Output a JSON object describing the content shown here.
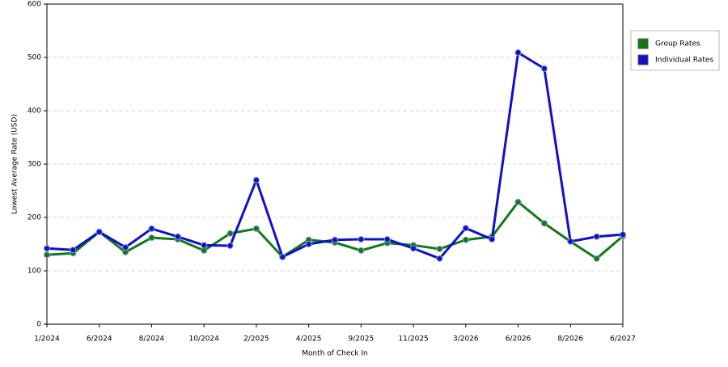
{
  "chart_data": {
    "type": "line",
    "x_label": "Month of Check In",
    "y_label": "Lowest Average Rate (USD)",
    "categories": [
      "1/2024",
      null,
      "6/2024",
      null,
      "8/2024",
      null,
      "10/2024",
      null,
      "2/2025",
      null,
      "4/2025",
      null,
      "9/2025",
      null,
      "11/2025",
      null,
      "3/2026",
      null,
      "6/2026",
      null,
      "8/2026",
      null,
      "6/2027"
    ],
    "series": [
      {
        "name": "Group Rates",
        "color": "#127a12",
        "values": [
          130,
          133,
          173,
          135,
          162,
          159,
          138,
          170,
          179,
          126,
          158,
          153,
          138,
          152,
          148,
          141,
          158,
          164,
          229,
          189,
          155,
          123,
          165
        ]
      },
      {
        "name": "Individual Rates",
        "color": "#1010cc",
        "values": [
          142,
          139,
          173,
          144,
          179,
          164,
          148,
          147,
          270,
          126,
          150,
          158,
          159,
          159,
          142,
          123,
          180,
          159,
          509,
          479,
          155,
          164,
          168
        ]
      }
    ],
    "ylim": [
      0,
      600
    ],
    "yticks": [
      0,
      100,
      200,
      300,
      400,
      500,
      600
    ],
    "grid": true,
    "legend": "right"
  }
}
